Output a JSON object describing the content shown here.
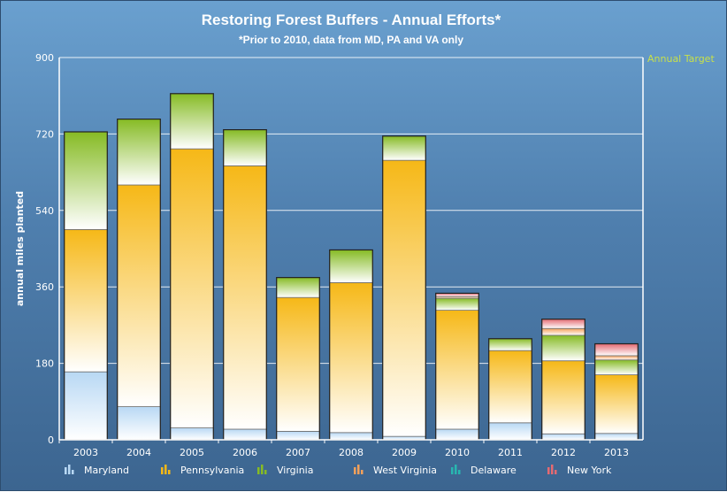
{
  "chart_data": {
    "type": "bar",
    "stacked": true,
    "title": "Restoring Forest Buffers - Annual Efforts*",
    "subtitle": "*Prior to 2010, data from MD, PA and VA only",
    "ylabel": "annual miles planted",
    "ylim": [
      0,
      900
    ],
    "yticks": [
      0,
      180,
      360,
      540,
      720,
      900
    ],
    "target_label": "Annual Target",
    "grid": true,
    "legend_position": "bottom",
    "categories": [
      "2003",
      "2004",
      "2005",
      "2006",
      "2007",
      "2008",
      "2009",
      "2010",
      "2011",
      "2012",
      "2013"
    ],
    "series": [
      {
        "name": "Maryland",
        "color": "#b8d8f4",
        "values": [
          160,
          78,
          28,
          25,
          20,
          17,
          8,
          25,
          40,
          14,
          15
        ]
      },
      {
        "name": "Pennsylvania",
        "color": "#f6b817",
        "values": [
          335,
          522,
          657,
          620,
          315,
          353,
          650,
          280,
          170,
          172,
          138
        ]
      },
      {
        "name": "Virginia",
        "color": "#86bb24",
        "values": [
          230,
          155,
          130,
          85,
          47,
          77,
          57,
          28,
          28,
          60,
          35
        ]
      },
      {
        "name": "West Virginia",
        "color": "#f4a05a",
        "values": [
          0,
          0,
          0,
          0,
          0,
          0,
          0,
          4,
          0,
          16,
          10
        ]
      },
      {
        "name": "Delaware",
        "color": "#28b6b0",
        "values": [
          0,
          0,
          0,
          0,
          0,
          0,
          0,
          0,
          0,
          0,
          0
        ]
      },
      {
        "name": "New York",
        "color": "#e46a72",
        "values": [
          0,
          0,
          0,
          0,
          0,
          0,
          0,
          8,
          0,
          22,
          28
        ]
      }
    ]
  }
}
